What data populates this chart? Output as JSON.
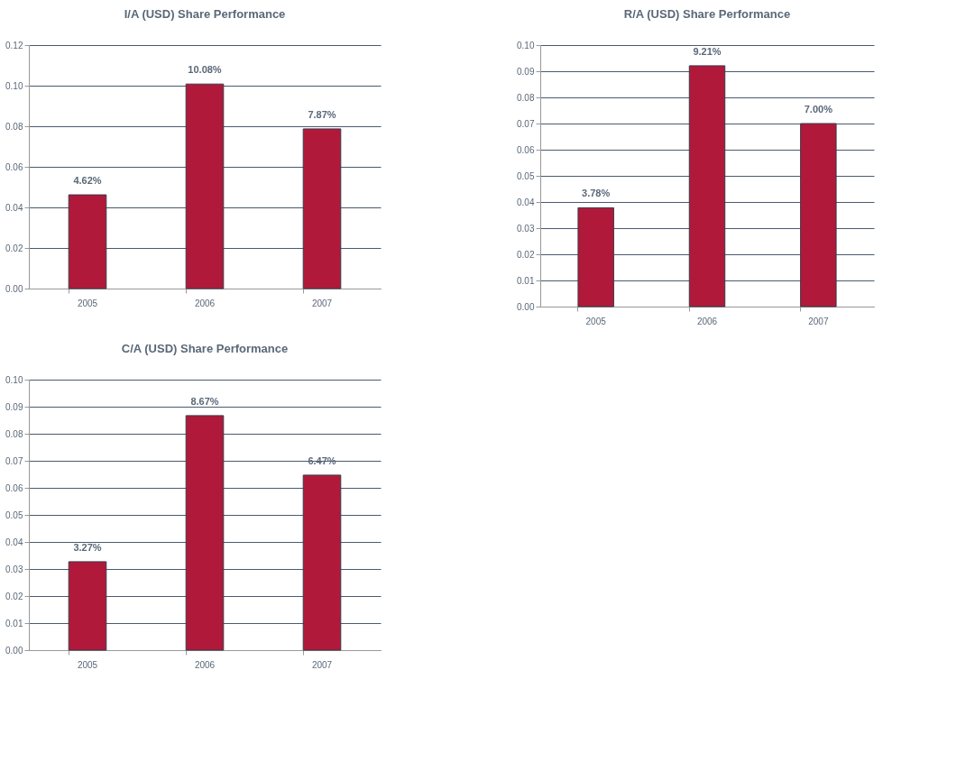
{
  "chart_data": [
    {
      "type": "bar",
      "title": "I/A (USD) Share Performance",
      "categories": [
        "2005",
        "2006",
        "2007"
      ],
      "series": [
        {
          "color": "#b0193a",
          "values": [
            0.0462,
            0.1008,
            0.0787
          ]
        }
      ],
      "value_labels": [
        "4.62%",
        "10.08%",
        "7.87%"
      ],
      "ylim": [
        0,
        0.12
      ],
      "yticks": [
        {
          "value": 0,
          "label": "0.00"
        },
        {
          "value": 0.02,
          "label": "0.02"
        },
        {
          "value": 0.04,
          "label": "0.04"
        },
        {
          "value": 0.06,
          "label": "0.06"
        },
        {
          "value": 0.08,
          "label": "0.08"
        },
        {
          "value": 0.1,
          "label": "0.10"
        },
        {
          "value": 0.12,
          "label": "0.12"
        }
      ],
      "grid": "y"
    },
    {
      "type": "bar",
      "title": "R/A (USD) Share Performance",
      "categories": [
        "2005",
        "2006",
        "2007"
      ],
      "series": [
        {
          "color": "#b0193a",
          "values": [
            0.0378,
            0.0921,
            0.07
          ]
        }
      ],
      "value_labels": [
        "3.78%",
        "9.21%",
        "7.00%"
      ],
      "ylim": [
        0,
        0.1
      ],
      "yticks": [
        {
          "value": 0,
          "label": "0.00"
        },
        {
          "value": 0.01,
          "label": "0.01"
        },
        {
          "value": 0.02,
          "label": "0.02"
        },
        {
          "value": 0.03,
          "label": "0.03"
        },
        {
          "value": 0.04,
          "label": "0.04"
        },
        {
          "value": 0.05,
          "label": "0.05"
        },
        {
          "value": 0.06,
          "label": "0.06"
        },
        {
          "value": 0.07,
          "label": "0.07"
        },
        {
          "value": 0.08,
          "label": "0.08"
        },
        {
          "value": 0.09,
          "label": "0.09"
        },
        {
          "value": 0.1,
          "label": "0.10"
        }
      ],
      "grid": "y"
    },
    {
      "type": "bar",
      "title": "C/A (USD) Share Performance",
      "categories": [
        "2005",
        "2006",
        "2007"
      ],
      "series": [
        {
          "color": "#b0193a",
          "values": [
            0.0327,
            0.0867,
            0.0647
          ]
        }
      ],
      "value_labels": [
        "3.27%",
        "8.67%",
        "6.47%"
      ],
      "ylim": [
        0,
        0.1
      ],
      "yticks": [
        {
          "value": 0,
          "label": "0.00"
        },
        {
          "value": 0.01,
          "label": "0.01"
        },
        {
          "value": 0.02,
          "label": "0.02"
        },
        {
          "value": 0.03,
          "label": "0.03"
        },
        {
          "value": 0.04,
          "label": "0.04"
        },
        {
          "value": 0.05,
          "label": "0.05"
        },
        {
          "value": 0.06,
          "label": "0.06"
        },
        {
          "value": 0.07,
          "label": "0.07"
        },
        {
          "value": 0.08,
          "label": "0.08"
        },
        {
          "value": 0.09,
          "label": "0.09"
        },
        {
          "value": 0.1,
          "label": "0.10"
        }
      ],
      "grid": "y"
    }
  ]
}
